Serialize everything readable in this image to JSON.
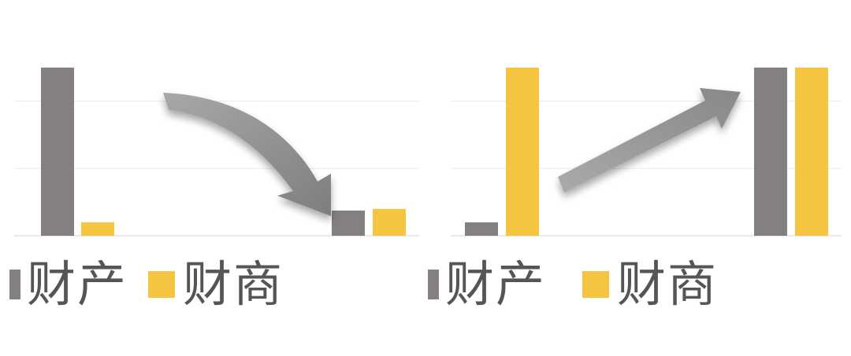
{
  "colors": {
    "series_1": "#858080",
    "series_2": "#f5c542",
    "arrow": "#8c8c8c",
    "grid": "#ececec"
  },
  "legend_icons": [
    "gray-square-icon",
    "yellow-square-icon"
  ],
  "chart_data": [
    {
      "type": "bar",
      "categories": [
        "",
        ""
      ],
      "series": [
        {
          "name": "财产",
          "values": [
            100,
            15
          ]
        },
        {
          "name": "财商",
          "values": [
            8,
            16
          ]
        }
      ],
      "ylim": [
        0,
        100
      ],
      "grid": true,
      "legend": [
        "财产",
        "财商"
      ],
      "annotation": "downward-curved-arrow"
    },
    {
      "type": "bar",
      "categories": [
        "",
        ""
      ],
      "series": [
        {
          "name": "财产",
          "values": [
            8,
            100
          ]
        },
        {
          "name": "财商",
          "values": [
            100,
            100
          ]
        }
      ],
      "ylim": [
        0,
        100
      ],
      "grid": true,
      "legend": [
        "财产",
        "财商"
      ],
      "annotation": "upward-straight-arrow"
    }
  ]
}
